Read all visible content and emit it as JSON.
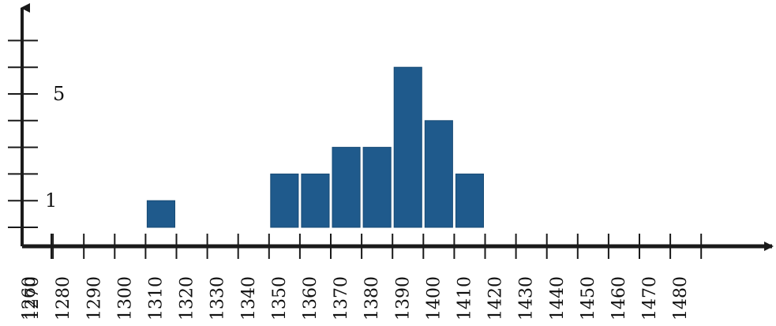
{
  "chart_data": {
    "type": "bar",
    "title": "",
    "xlabel": "",
    "ylabel": "",
    "x_ticks": [
      1260,
      1270,
      1280,
      1290,
      1300,
      1310,
      1320,
      1330,
      1340,
      1350,
      1360,
      1370,
      1380,
      1390,
      1400,
      1410,
      1420,
      1430,
      1440,
      1450,
      1460,
      1470,
      1480
    ],
    "y_tick_labels": [
      {
        "value": 1,
        "label": "1"
      },
      {
        "value": 5,
        "label": "5"
      }
    ],
    "y_ticks": [
      0,
      1,
      2,
      3,
      4,
      5,
      6,
      7
    ],
    "bars": [
      {
        "start": 1300,
        "end": 1310,
        "value": 1
      },
      {
        "start": 1340,
        "end": 1350,
        "value": 2
      },
      {
        "start": 1350,
        "end": 1360,
        "value": 2
      },
      {
        "start": 1360,
        "end": 1370,
        "value": 3
      },
      {
        "start": 1370,
        "end": 1380,
        "value": 3
      },
      {
        "start": 1380,
        "end": 1390,
        "value": 6
      },
      {
        "start": 1390,
        "end": 1400,
        "value": 4
      },
      {
        "start": 1400,
        "end": 1410,
        "value": 2
      }
    ],
    "xlim": [
      1260,
      1490
    ],
    "ylim": [
      0,
      7.8
    ],
    "grid": false,
    "colors": {
      "bar": "#1f5a8c",
      "axis": "#1a1a1a"
    }
  }
}
